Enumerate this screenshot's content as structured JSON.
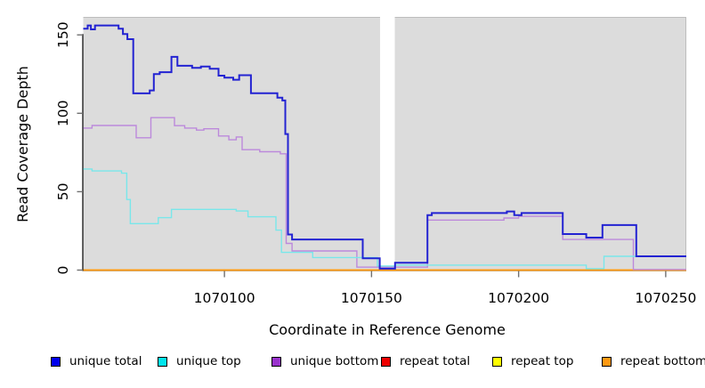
{
  "chart_data": {
    "type": "line",
    "subtype": "step-after-coverage-plot",
    "title": "",
    "xlabel": "Coordinate in Reference Genome",
    "ylabel": "Read Coverage Depth",
    "xlim": [
      1070052,
      1070257
    ],
    "ylim": [
      0,
      161
    ],
    "x_ticks": [
      1070100,
      1070150,
      1070200,
      1070250
    ],
    "x_tick_labels": [
      "1070100",
      "1070150",
      "1070200",
      "1070250"
    ],
    "y_ticks": [
      0,
      50,
      100,
      150
    ],
    "y_tick_labels": [
      "0",
      "50",
      "100",
      "150"
    ],
    "grid": false,
    "panel_bg": "#DCDCDC",
    "panel_border": "#BDBDBD",
    "gap_region": [
      1070152.9,
      1070157.9
    ],
    "legend_position": "bottom",
    "series": [
      {
        "name": "unique total",
        "legend_color": "#0000EE",
        "stroke": "#2323D2",
        "stroke_width": 2,
        "points": [
          [
            1070052,
            154
          ],
          [
            1070053.5,
            156
          ],
          [
            1070054.6,
            153.5
          ],
          [
            1070056,
            156
          ],
          [
            1070064,
            154
          ],
          [
            1070065.5,
            150.5
          ],
          [
            1070067,
            147.3
          ],
          [
            1070069,
            112.7
          ],
          [
            1070074.6,
            114.6
          ],
          [
            1070076,
            125
          ],
          [
            1070078,
            126.2
          ],
          [
            1070082,
            136
          ],
          [
            1070084,
            130.3
          ],
          [
            1070089,
            129
          ],
          [
            1070092,
            129.8
          ],
          [
            1070095,
            128.4
          ],
          [
            1070098,
            124
          ],
          [
            1070100,
            122.7
          ],
          [
            1070103,
            121.4
          ],
          [
            1070105,
            124.3
          ],
          [
            1070109,
            112.8
          ],
          [
            1070118,
            110
          ],
          [
            1070119.7,
            108.2
          ],
          [
            1070120.7,
            86.8
          ],
          [
            1070121.6,
            22.7
          ],
          [
            1070123,
            19.5
          ],
          [
            1070147,
            7.5
          ],
          [
            1070152.8,
            0.9
          ],
          [
            1070158,
            4.7
          ],
          [
            1070169,
            35.1
          ],
          [
            1070170.5,
            36.4
          ],
          [
            1070196,
            37.4
          ],
          [
            1070198.5,
            35.1
          ],
          [
            1070201,
            36.4
          ],
          [
            1070215,
            23
          ],
          [
            1070223,
            20.7
          ],
          [
            1070228.5,
            28.7
          ],
          [
            1070240,
            8.8
          ]
        ]
      },
      {
        "name": "unique top",
        "legend_color": "#00E5EE",
        "stroke": "#79E7EA",
        "stroke_width": 1.4,
        "points": [
          [
            1070052,
            64.5
          ],
          [
            1070055,
            63.2
          ],
          [
            1070065,
            61.8
          ],
          [
            1070066.8,
            45
          ],
          [
            1070068,
            29.6
          ],
          [
            1070077.5,
            33.4
          ],
          [
            1070082,
            38.7
          ],
          [
            1070104,
            37.7
          ],
          [
            1070108,
            34
          ],
          [
            1070117.5,
            25.5
          ],
          [
            1070119.4,
            11.3
          ],
          [
            1070130,
            8
          ],
          [
            1070152,
            2.6
          ],
          [
            1070158,
            3.2
          ],
          [
            1070223,
            0.9
          ],
          [
            1070229,
            8.8
          ]
        ]
      },
      {
        "name": "unique bottom",
        "legend_color": "#9932CC",
        "stroke": "#BC89DB",
        "stroke_width": 1.4,
        "points": [
          [
            1070052,
            90.6
          ],
          [
            1070055,
            92.2
          ],
          [
            1070070,
            84.4
          ],
          [
            1070075,
            97.2
          ],
          [
            1070083,
            92.1
          ],
          [
            1070086.5,
            90.6
          ],
          [
            1070090.5,
            89.3
          ],
          [
            1070093,
            90.1
          ],
          [
            1070098,
            85.5
          ],
          [
            1070101.5,
            83.1
          ],
          [
            1070104,
            84.9
          ],
          [
            1070106,
            76.8
          ],
          [
            1070112,
            75.5
          ],
          [
            1070119,
            74.2
          ],
          [
            1070121,
            17
          ],
          [
            1070123,
            12.2
          ],
          [
            1070145,
            1.9
          ],
          [
            1070169,
            31.9
          ],
          [
            1070195,
            33.2
          ],
          [
            1070200,
            34.3
          ],
          [
            1070215,
            19.5
          ],
          [
            1070239,
            0.4
          ]
        ]
      },
      {
        "name": "repeat total",
        "legend_color": "#EE0000",
        "stroke": "#EE0000",
        "stroke_width": 1.4,
        "points": [
          [
            1070052,
            0
          ]
        ]
      },
      {
        "name": "repeat top",
        "legend_color": "#FFFF00",
        "stroke": "#FFFF00",
        "stroke_width": 1.4,
        "points": [
          [
            1070052,
            0
          ]
        ]
      },
      {
        "name": "repeat bottom",
        "legend_color": "#FF9912",
        "stroke": "#FF9912",
        "stroke_width": 1.7,
        "points": [
          [
            1070052,
            0
          ]
        ]
      }
    ]
  }
}
